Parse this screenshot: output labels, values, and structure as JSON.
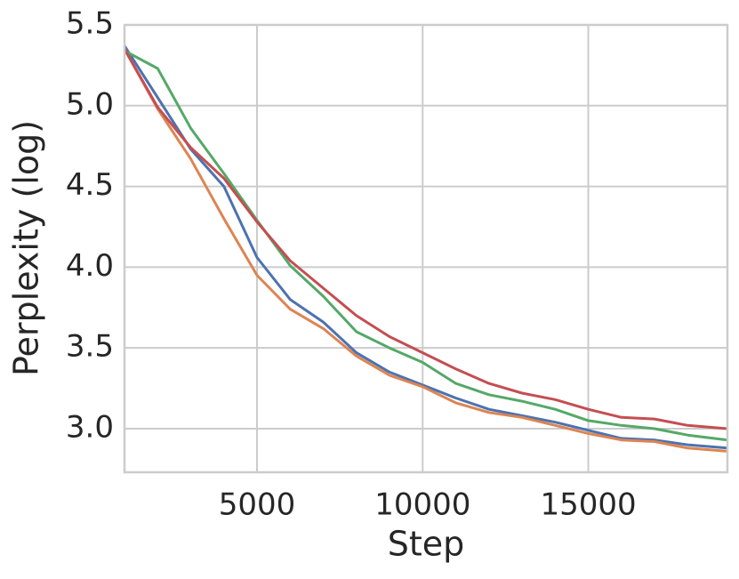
{
  "chart_data": {
    "type": "line",
    "xlabel": "Step",
    "ylabel": "Perplexity (log)",
    "x": [
      1000,
      2000,
      3000,
      4000,
      5000,
      6000,
      7000,
      8000,
      9000,
      10000,
      11000,
      12000,
      13000,
      14000,
      15000,
      16000,
      17000,
      18000,
      19200
    ],
    "series": [
      {
        "color": "#4c72b0",
        "values": [
          5.37,
          5.05,
          4.73,
          4.5,
          4.06,
          3.8,
          3.66,
          3.47,
          3.35,
          3.27,
          3.19,
          3.12,
          3.08,
          3.04,
          2.99,
          2.94,
          2.93,
          2.9,
          2.88
        ]
      },
      {
        "color": "#dd8452",
        "values": [
          5.35,
          4.98,
          4.67,
          4.3,
          3.95,
          3.74,
          3.62,
          3.45,
          3.33,
          3.26,
          3.16,
          3.1,
          3.07,
          3.02,
          2.97,
          2.93,
          2.92,
          2.88,
          2.86
        ]
      },
      {
        "color": "#55a868",
        "values": [
          5.34,
          5.23,
          4.86,
          4.58,
          4.29,
          4.01,
          3.82,
          3.6,
          3.5,
          3.41,
          3.28,
          3.21,
          3.17,
          3.12,
          3.05,
          3.02,
          3.0,
          2.96,
          2.93
        ]
      },
      {
        "color": "#c44e52",
        "values": [
          5.35,
          4.99,
          4.74,
          4.55,
          4.28,
          4.04,
          3.87,
          3.7,
          3.57,
          3.47,
          3.37,
          3.28,
          3.22,
          3.18,
          3.12,
          3.07,
          3.06,
          3.02,
          3.0
        ]
      }
    ],
    "xlim": [
      1000,
      19200
    ],
    "xticks": [
      5000,
      10000,
      15000
    ],
    "ylim": [
      2.73,
      5.5
    ],
    "yticks": [
      {
        "value": 3,
        "label": "3.0"
      },
      3.5,
      {
        "value": 4,
        "label": "4.0"
      },
      4.5,
      {
        "value": 5,
        "label": "5.0"
      },
      5.5
    ],
    "grid": true
  }
}
